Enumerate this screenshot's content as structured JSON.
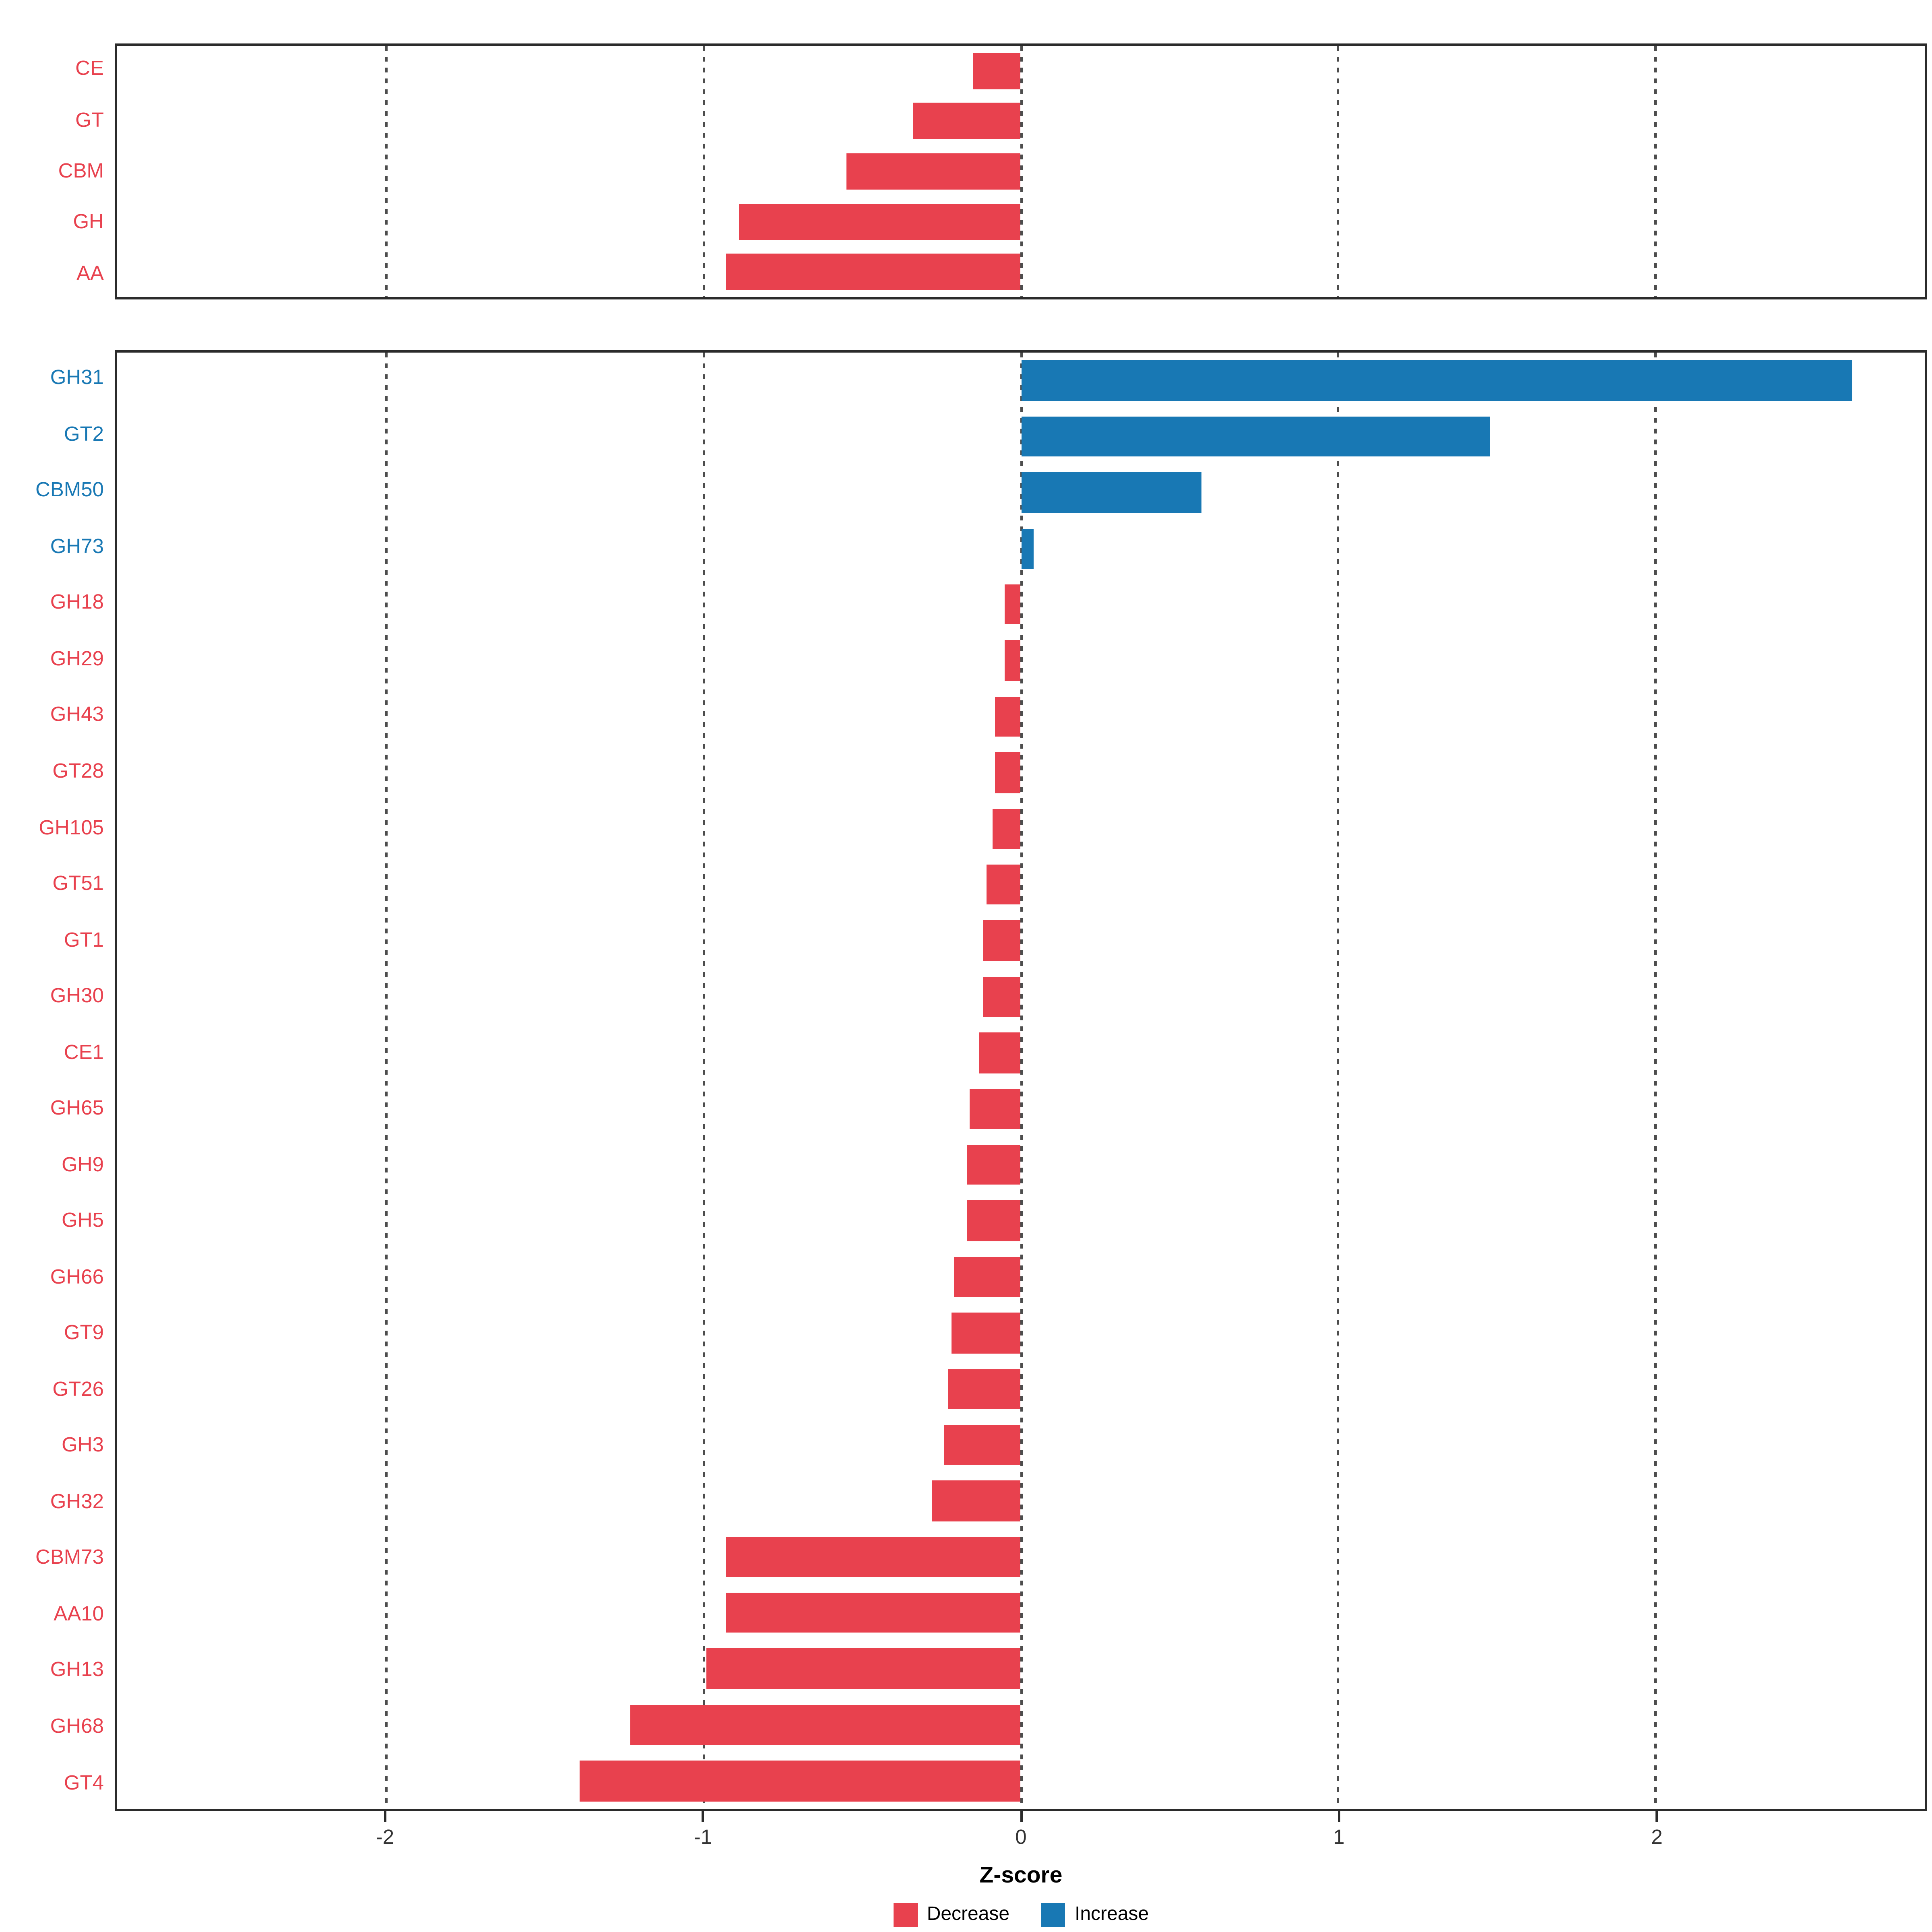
{
  "chart_data": {
    "type": "bar",
    "orientation": "horizontal",
    "title": "",
    "xlabel": "Z-score",
    "ylabel": "",
    "xlim": [
      -2.85,
      2.85
    ],
    "x_ticks": [
      -2,
      -1,
      0,
      1,
      2
    ],
    "grid": "dashed-vertical",
    "legend_position": "bottom",
    "colors": {
      "decrease": "#E8414E",
      "increase": "#1878B4"
    },
    "legend": [
      {
        "label": "Decrease",
        "color": "#E8414E"
      },
      {
        "label": "Increase",
        "color": "#1878B4"
      }
    ],
    "panels": [
      {
        "name": "family-class-summary",
        "categories": [
          "CE",
          "GT",
          "CBM",
          "GH",
          "AA"
        ],
        "values": [
          -0.15,
          -0.34,
          -0.55,
          -0.89,
          -0.93
        ]
      },
      {
        "name": "family-detail",
        "categories": [
          "GH31",
          "GT2",
          "CBM50",
          "GH73",
          "GH18",
          "GH29",
          "GH43",
          "GT28",
          "GH105",
          "GT51",
          "GT1",
          "GH30",
          "CE1",
          "GH65",
          "GH9",
          "GH5",
          "GH66",
          "GT9",
          "GT26",
          "GH3",
          "GH32",
          "CBM73",
          "AA10",
          "GH13",
          "GH68",
          "GT4"
        ],
        "values": [
          2.62,
          1.48,
          0.57,
          0.04,
          -0.05,
          -0.05,
          -0.08,
          -0.08,
          -0.09,
          -0.11,
          -0.12,
          -0.12,
          -0.13,
          -0.16,
          -0.17,
          -0.17,
          -0.21,
          -0.22,
          -0.23,
          -0.24,
          -0.28,
          -0.93,
          -0.93,
          -0.99,
          -1.23,
          -1.39
        ]
      }
    ]
  }
}
